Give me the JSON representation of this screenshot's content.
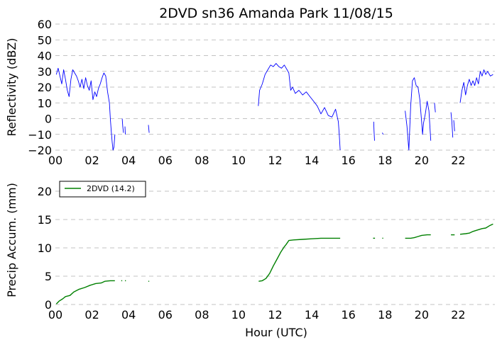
{
  "title": "2DVD sn36 Amanda Park 11/08/15",
  "chart_data": [
    {
      "type": "line",
      "ylabel": "Reflectivity (dBZ)",
      "xlabel": "",
      "xlim": [
        0,
        24
      ],
      "ylim": [
        -20,
        60
      ],
      "grid": "horizontal dashed",
      "x_tick_labels": [
        "00",
        "02",
        "04",
        "06",
        "08",
        "10",
        "12",
        "14",
        "16",
        "18",
        "20",
        "22"
      ],
      "x_tick_values": [
        0,
        2,
        4,
        6,
        8,
        10,
        12,
        14,
        16,
        18,
        20,
        22
      ],
      "y_tick_labels": [
        "−20",
        "−10",
        "0",
        "10",
        "20",
        "30",
        "40",
        "50",
        "60"
      ],
      "y_tick_values": [
        -20,
        -10,
        0,
        10,
        20,
        30,
        40,
        50,
        60
      ],
      "series": [
        {
          "color": "#0000ff",
          "segments": [
            [
              [
                0.05,
                28
              ],
              [
                0.15,
                32
              ],
              [
                0.25,
                27
              ],
              [
                0.35,
                22
              ],
              [
                0.45,
                31
              ],
              [
                0.55,
                25
              ],
              [
                0.65,
                18
              ],
              [
                0.75,
                14
              ],
              [
                0.85,
                25
              ],
              [
                0.95,
                31
              ],
              [
                1.05,
                29
              ],
              [
                1.15,
                27
              ],
              [
                1.25,
                24
              ],
              [
                1.35,
                20
              ],
              [
                1.45,
                25
              ],
              [
                1.55,
                19
              ],
              [
                1.65,
                26
              ],
              [
                1.75,
                21
              ],
              [
                1.85,
                18
              ],
              [
                1.95,
                24
              ],
              [
                2.05,
                12
              ],
              [
                2.15,
                17
              ],
              [
                2.25,
                14
              ],
              [
                2.35,
                19
              ],
              [
                2.45,
                22
              ],
              [
                2.55,
                26
              ],
              [
                2.65,
                29
              ],
              [
                2.75,
                27
              ],
              [
                2.85,
                17
              ],
              [
                2.95,
                10
              ],
              [
                3.0,
                0
              ],
              [
                3.05,
                -8
              ],
              [
                3.1,
                -15
              ],
              [
                3.15,
                -20
              ],
              [
                3.2,
                -18
              ],
              [
                3.25,
                -10
              ]
            ],
            [
              [
                3.65,
                0
              ],
              [
                3.68,
                -5
              ],
              [
                3.72,
                -9
              ]
            ],
            [
              [
                3.8,
                -5
              ],
              [
                3.82,
                -10
              ]
            ],
            [
              [
                5.08,
                -4
              ],
              [
                5.12,
                -9
              ]
            ],
            [
              [
                11.08,
                8
              ],
              [
                11.15,
                18
              ],
              [
                11.3,
                22
              ],
              [
                11.45,
                28
              ],
              [
                11.6,
                31
              ],
              [
                11.75,
                34
              ],
              [
                11.9,
                33
              ],
              [
                12.05,
                35
              ],
              [
                12.2,
                33
              ],
              [
                12.35,
                32
              ],
              [
                12.5,
                34
              ],
              [
                12.65,
                31
              ],
              [
                12.75,
                29
              ],
              [
                12.85,
                18
              ],
              [
                12.95,
                20
              ],
              [
                13.1,
                16
              ],
              [
                13.3,
                18
              ],
              [
                13.5,
                15
              ],
              [
                13.7,
                17
              ],
              [
                13.9,
                14
              ],
              [
                14.1,
                11
              ],
              [
                14.3,
                8
              ],
              [
                14.5,
                3
              ],
              [
                14.7,
                7
              ],
              [
                14.9,
                2
              ],
              [
                15.1,
                1
              ],
              [
                15.3,
                6
              ],
              [
                15.45,
                -2
              ],
              [
                15.5,
                -10
              ],
              [
                15.55,
                -20
              ]
            ],
            [
              [
                17.38,
                -2
              ],
              [
                17.4,
                -8
              ],
              [
                17.43,
                -14
              ]
            ],
            [
              [
                17.85,
                -9
              ],
              [
                17.9,
                -10
              ]
            ],
            [
              [
                19.1,
                5
              ],
              [
                19.2,
                -5
              ],
              [
                19.3,
                -20
              ],
              [
                19.4,
                8
              ],
              [
                19.5,
                24
              ],
              [
                19.6,
                26
              ],
              [
                19.7,
                21
              ],
              [
                19.8,
                20
              ],
              [
                19.9,
                12
              ],
              [
                20.0,
                -2
              ],
              [
                20.05,
                -10
              ],
              [
                20.1,
                -3
              ],
              [
                20.2,
                3
              ],
              [
                20.3,
                11
              ],
              [
                20.4,
                5
              ],
              [
                20.5,
                -14
              ]
            ],
            [
              [
                20.7,
                10
              ],
              [
                20.75,
                4
              ]
            ],
            [
              [
                21.6,
                4
              ],
              [
                21.65,
                -2
              ],
              [
                21.7,
                -12
              ]
            ],
            [
              [
                21.75,
                -1
              ],
              [
                21.8,
                -8
              ]
            ],
            [
              [
                22.1,
                10
              ],
              [
                22.2,
                18
              ],
              [
                22.3,
                23
              ],
              [
                22.4,
                15
              ],
              [
                22.5,
                21
              ],
              [
                22.6,
                25
              ],
              [
                22.7,
                21
              ],
              [
                22.8,
                24
              ],
              [
                22.9,
                21
              ],
              [
                23.0,
                26
              ],
              [
                23.1,
                22
              ],
              [
                23.2,
                30
              ],
              [
                23.3,
                27
              ],
              [
                23.4,
                31
              ],
              [
                23.5,
                28
              ],
              [
                23.6,
                30
              ],
              [
                23.75,
                27
              ],
              [
                23.9,
                28
              ]
            ]
          ]
        }
      ]
    },
    {
      "type": "line",
      "ylabel": "Precip Accum. (mm)",
      "xlabel": "Hour (UTC)",
      "xlim": [
        0,
        24
      ],
      "ylim": [
        0,
        23
      ],
      "grid": "horizontal dashed",
      "legend_position": "top-left",
      "x_tick_labels": [
        "00",
        "02",
        "04",
        "06",
        "08",
        "10",
        "12",
        "14",
        "16",
        "18",
        "20",
        "22"
      ],
      "x_tick_values": [
        0,
        2,
        4,
        6,
        8,
        10,
        12,
        14,
        16,
        18,
        20,
        22
      ],
      "y_tick_labels": [
        "0",
        "5",
        "10",
        "15",
        "20"
      ],
      "y_tick_values": [
        0,
        5,
        10,
        15,
        20
      ],
      "series": [
        {
          "name": "2DVD (14.2)",
          "color": "#008000",
          "segments": [
            [
              [
                0.05,
                0.1
              ],
              [
                0.2,
                0.6
              ],
              [
                0.4,
                1.0
              ],
              [
                0.55,
                1.4
              ],
              [
                0.8,
                1.6
              ],
              [
                1.0,
                2.2
              ],
              [
                1.3,
                2.7
              ],
              [
                1.6,
                3.0
              ],
              [
                1.9,
                3.4
              ],
              [
                2.2,
                3.7
              ],
              [
                2.5,
                3.8
              ],
              [
                2.7,
                4.1
              ],
              [
                3.0,
                4.2
              ],
              [
                3.25,
                4.2
              ]
            ],
            [
              [
                3.6,
                4.2
              ],
              [
                3.65,
                4.2
              ]
            ],
            [
              [
                3.8,
                4.2
              ],
              [
                3.85,
                4.2
              ]
            ],
            [
              [
                5.08,
                4.1
              ],
              [
                5.12,
                4.1
              ]
            ],
            [
              [
                11.1,
                4.1
              ],
              [
                11.3,
                4.2
              ],
              [
                11.5,
                4.6
              ],
              [
                11.7,
                5.5
              ],
              [
                11.9,
                6.8
              ],
              [
                12.1,
                8.0
              ],
              [
                12.3,
                9.2
              ],
              [
                12.5,
                10.2
              ],
              [
                12.6,
                10.6
              ],
              [
                12.75,
                11.3
              ],
              [
                13.0,
                11.4
              ],
              [
                13.5,
                11.5
              ],
              [
                14.0,
                11.6
              ],
              [
                14.5,
                11.7
              ],
              [
                15.0,
                11.7
              ],
              [
                15.55,
                11.7
              ]
            ],
            [
              [
                17.35,
                11.7
              ],
              [
                17.45,
                11.7
              ]
            ],
            [
              [
                17.85,
                11.7
              ],
              [
                17.9,
                11.7
              ]
            ],
            [
              [
                19.1,
                11.7
              ],
              [
                19.4,
                11.7
              ],
              [
                19.6,
                11.8
              ],
              [
                19.8,
                12.0
              ],
              [
                20.0,
                12.2
              ],
              [
                20.3,
                12.3
              ],
              [
                20.5,
                12.3
              ]
            ],
            [
              [
                21.6,
                12.3
              ],
              [
                21.8,
                12.3
              ]
            ],
            [
              [
                22.1,
                12.4
              ],
              [
                22.4,
                12.5
              ],
              [
                22.6,
                12.6
              ],
              [
                22.8,
                12.9
              ],
              [
                23.0,
                13.1
              ],
              [
                23.3,
                13.4
              ],
              [
                23.5,
                13.5
              ],
              [
                23.7,
                13.9
              ],
              [
                23.9,
                14.2
              ]
            ]
          ]
        }
      ]
    }
  ]
}
